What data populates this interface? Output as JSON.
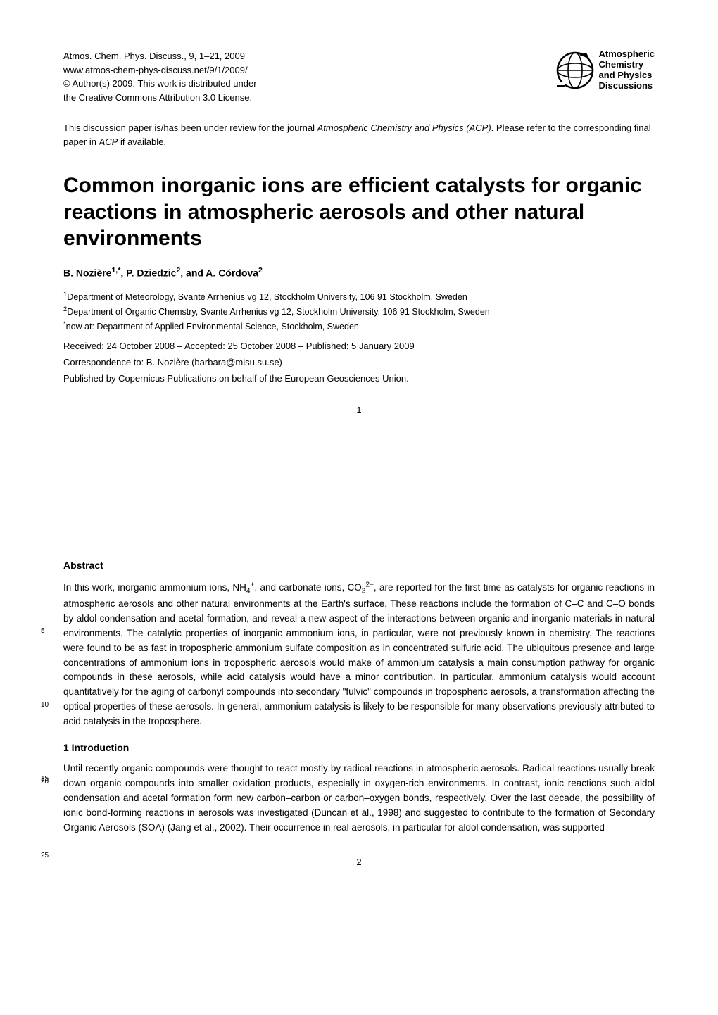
{
  "header": {
    "journal_line": "Atmos. Chem. Phys. Discuss., 9, 1–21, 2009",
    "url_line": "www.atmos-chem-phys-discuss.net/9/1/2009/",
    "copyright_line": "© Author(s) 2009. This work is distributed under",
    "license_line": "the Creative Commons Attribution 3.0 License.",
    "logo_text_l1": "Atmospheric",
    "logo_text_l2": "Chemistry",
    "logo_text_l3": "and Physics",
    "logo_text_l4": "Discussions"
  },
  "review_note": "This discussion paper is/has been under review for the journal Atmospheric Chemistry and Physics (ACP). Please refer to the corresponding final paper in ACP if available.",
  "title": "Common inorganic ions are efficient catalysts for organic reactions in atmospheric aerosols and other natural environments",
  "authors_html": "B. Nozière<sup>1,*</sup>, P. Dziedzic<sup>2</sup>, and A. Córdova<sup>2</sup>",
  "affiliations": {
    "a1": "<sup>1</sup>Department of Meteorology, Svante Arrhenius vg 12, Stockholm University, 106 91 Stockholm, Sweden",
    "a2": "<sup>2</sup>Department of Organic Chemstry, Svante Arrhenius vg 12, Stockholm University, 106 91 Stockholm, Sweden",
    "a3": "<sup>*</sup>now at: Department of Applied Environmental Science, Stockholm, Sweden"
  },
  "dates": "Received: 24 October 2008 – Accepted: 25 October 2008 – Published: 5 January 2009",
  "correspondence": "Correspondence to: B. Nozière (barbara@misu.su.se)",
  "publisher": "Published by Copernicus Publications on behalf of the European Geosciences Union.",
  "page_numbers": {
    "p1": "1",
    "p2": "2"
  },
  "abstract": {
    "heading": "Abstract",
    "text_html": "In this work, inorganic ammonium ions, NH<sub>4</sub><sup>+</sup>, and carbonate ions, CO<sub>3</sub><sup>2−</sup>, are reported for the first time as catalysts for organic reactions in atmospheric aerosols and other natural environments at the Earth's surface. These reactions include the formation of C–C and C–O bonds by aldol condensation and acetal formation, and reveal a new aspect of the interactions between organic and inorganic materials in natural environments. The catalytic properties of inorganic ammonium ions, in particular, were not previously known in chemistry. The reactions were found to be as fast in tropospheric ammonium sulfate composition as in concentrated sulfuric acid. The ubiquitous presence and large concentrations of ammonium ions in tropospheric aerosols would make of ammonium catalysis a main consumption pathway for organic compounds in these aerosols, while acid catalysis would have a minor contribution. In particular, ammonium catalysis would account quantitatively for the aging of carbonyl compounds into secondary \"fulvic\" compounds in tropospheric aerosols, a transformation affecting the optical properties of these aerosols. In general, ammonium catalysis is likely to be responsible for many observations previously attributed to acid catalysis in the troposphere.",
    "line_markers": {
      "m5": "5",
      "m10": "10",
      "m15": "15"
    }
  },
  "intro": {
    "heading": "1   Introduction",
    "text": "Until recently organic compounds were thought to react mostly by radical reactions in atmospheric aerosols. Radical reactions usually break down organic compounds into smaller oxidation products, especially in oxygen-rich environments. In contrast, ionic reactions such aldol condensation and acetal formation form new carbon–carbon or carbon–oxygen bonds, respectively. Over the last decade, the possibility of ionic bond-forming reactions in aerosols was investigated (Duncan et al., 1998) and suggested to contribute to the formation of Secondary Organic Aerosols (SOA) (Jang et al., 2002). Their occurrence in real aerosols, in particular for aldol condensation, was supported",
    "line_markers": {
      "m20": "20",
      "m25": "25"
    }
  },
  "colors": {
    "text": "#000000",
    "background": "#ffffff"
  }
}
